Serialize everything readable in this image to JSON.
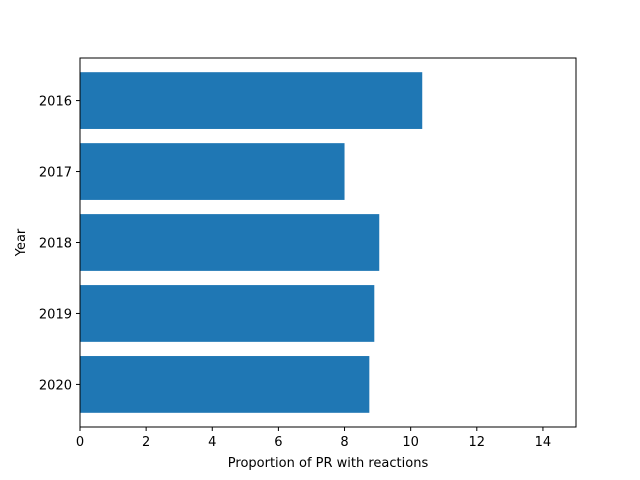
{
  "chart_data": {
    "type": "bar",
    "orientation": "horizontal",
    "categories": [
      "2016",
      "2017",
      "2018",
      "2019",
      "2020"
    ],
    "values": [
      10.35,
      8.0,
      9.05,
      8.9,
      8.75
    ],
    "xlabel": "Proportion of PR with reactions",
    "ylabel": "Year",
    "xlim": [
      0,
      15
    ],
    "xticks": [
      0,
      2,
      4,
      6,
      8,
      10,
      12,
      14
    ],
    "bar_color": "#1f77b4",
    "grid": false,
    "legend": "none"
  }
}
